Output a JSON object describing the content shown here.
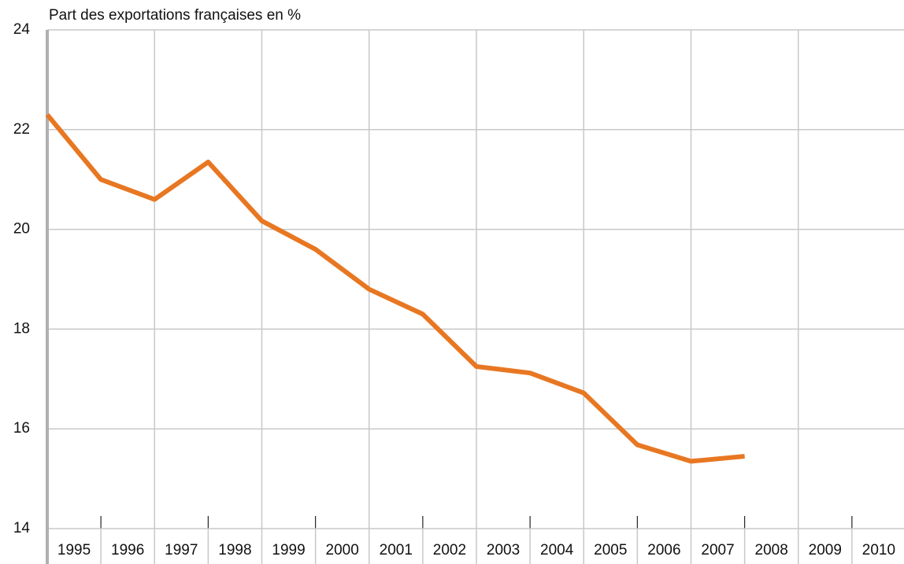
{
  "chart_data": {
    "type": "line",
    "subtitle": "Part des exportations françaises en %",
    "categories": [
      "1995",
      "1996",
      "1997",
      "1998",
      "1999",
      "2000",
      "2001",
      "2002",
      "2003",
      "2004",
      "2005",
      "2006",
      "2007",
      "2008",
      "2009",
      "2010"
    ],
    "series": [
      {
        "color": "#e87722",
        "values": [
          22.3,
          21.0,
          20.6,
          21.35,
          20.17,
          19.6,
          18.8,
          18.3,
          17.25,
          17.12,
          16.72,
          15.68,
          15.35,
          15.45,
          null,
          null
        ]
      }
    ],
    "ylim": [
      14,
      24
    ],
    "yticks": [
      14,
      16,
      18,
      20,
      22,
      24
    ],
    "grid": true
  }
}
